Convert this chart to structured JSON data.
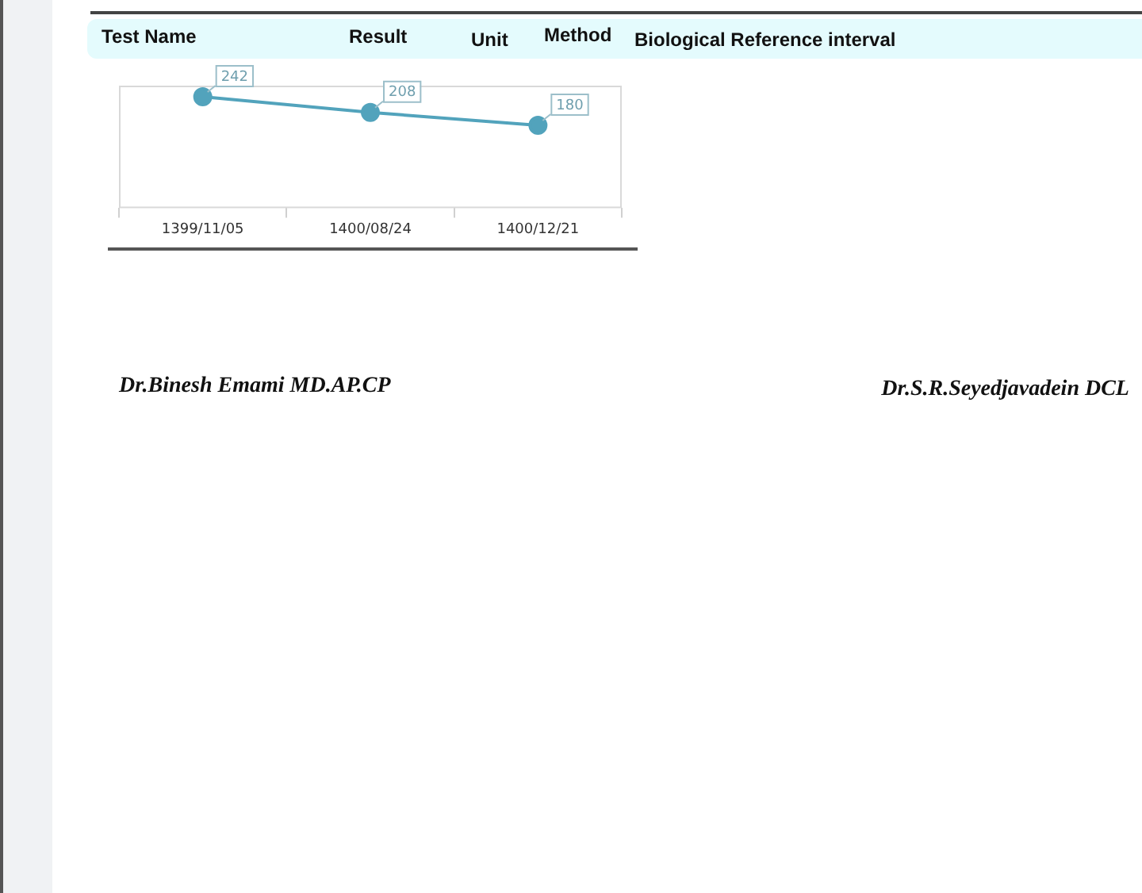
{
  "chart_data": {
    "type": "line",
    "categories": [
      "1399/11/05",
      "1400/08/24",
      "1400/12/21"
    ],
    "values": [
      242,
      208,
      180
    ],
    "color": "#52a3bc",
    "marker": "circle",
    "line_style": "solid",
    "data_labels": true,
    "annotations": [
      "Test Name",
      "Result",
      "Unit",
      "Method",
      "Biological Reference interval",
      "Dr.Binesh Emami MD.AP.CP",
      "Dr.S.R.Seyedjavadein DCL"
    ]
  }
}
